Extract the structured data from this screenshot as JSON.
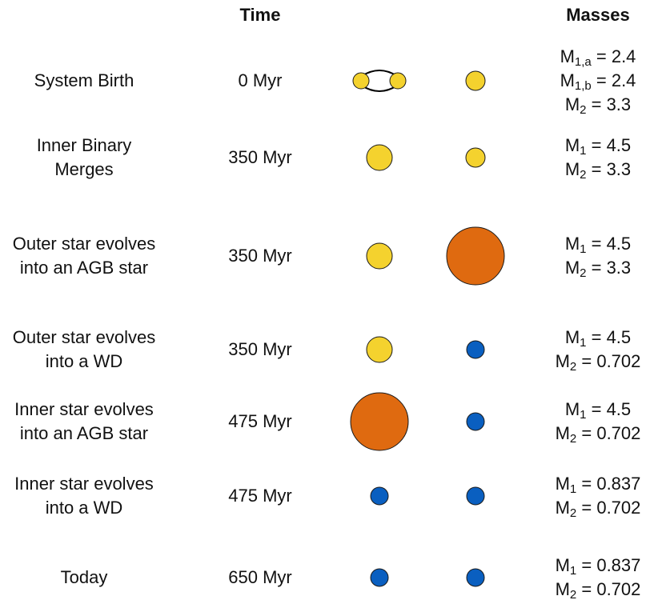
{
  "headers": {
    "time": "Time",
    "masses": "Masses"
  },
  "colors": {
    "ms": "#F4D22E",
    "agb": "#DF6A10",
    "wd": "#0A5FC0",
    "outline": "#1a1a1a"
  },
  "rows": [
    {
      "stage": [
        "System Birth"
      ],
      "time": "0 Myr",
      "inner": "inner-binary",
      "outer": "main-sequence-small",
      "masses": [
        {
          "sym": "M",
          "sub": "1,a",
          "val": " = 2.4"
        },
        {
          "sym": "M",
          "sub": "1,b",
          "val": " = 2.4"
        },
        {
          "sym": "M",
          "sub": "2",
          "val": " = 3.3"
        }
      ]
    },
    {
      "stage": [
        "Inner Binary",
        "Merges"
      ],
      "time": "350 Myr",
      "inner": "main-sequence-large",
      "outer": "main-sequence-small",
      "masses": [
        {
          "sym": "M",
          "sub": "1",
          "val": " = 4.5"
        },
        {
          "sym": "M",
          "sub": "2",
          "val": " = 3.3"
        }
      ]
    },
    {
      "stage": [
        "Outer star evolves",
        "into an AGB star"
      ],
      "time": "350 Myr",
      "inner": "main-sequence-large",
      "outer": "agb-star",
      "masses": [
        {
          "sym": "M",
          "sub": "1",
          "val": " = 4.5"
        },
        {
          "sym": "M",
          "sub": "2",
          "val": " = 3.3"
        }
      ]
    },
    {
      "stage": [
        "Outer star evolves",
        "into a WD"
      ],
      "time": "350 Myr",
      "inner": "main-sequence-large",
      "outer": "white-dwarf",
      "masses": [
        {
          "sym": "M",
          "sub": "1",
          "val": " = 4.5"
        },
        {
          "sym": "M",
          "sub": "2",
          "val": " = 0.702"
        }
      ]
    },
    {
      "stage": [
        "Inner star evolves",
        "into an AGB star"
      ],
      "time": "475 Myr",
      "inner": "agb-star",
      "outer": "white-dwarf",
      "masses": [
        {
          "sym": "M",
          "sub": "1",
          "val": " = 4.5"
        },
        {
          "sym": "M",
          "sub": "2",
          "val": " = 0.702"
        }
      ]
    },
    {
      "stage": [
        "Inner star evolves",
        "into a WD"
      ],
      "time": "475 Myr",
      "inner": "white-dwarf",
      "outer": "white-dwarf",
      "masses": [
        {
          "sym": "M",
          "sub": "1",
          "val": " = 0.837"
        },
        {
          "sym": "M",
          "sub": "2",
          "val": " = 0.702"
        }
      ]
    },
    {
      "stage": [
        "Today"
      ],
      "time": "650 Myr",
      "inner": "white-dwarf",
      "outer": "white-dwarf",
      "masses": [
        {
          "sym": "M",
          "sub": "1",
          "val": " = 0.837"
        },
        {
          "sym": "M",
          "sub": "2",
          "val": " = 0.702"
        }
      ]
    }
  ]
}
